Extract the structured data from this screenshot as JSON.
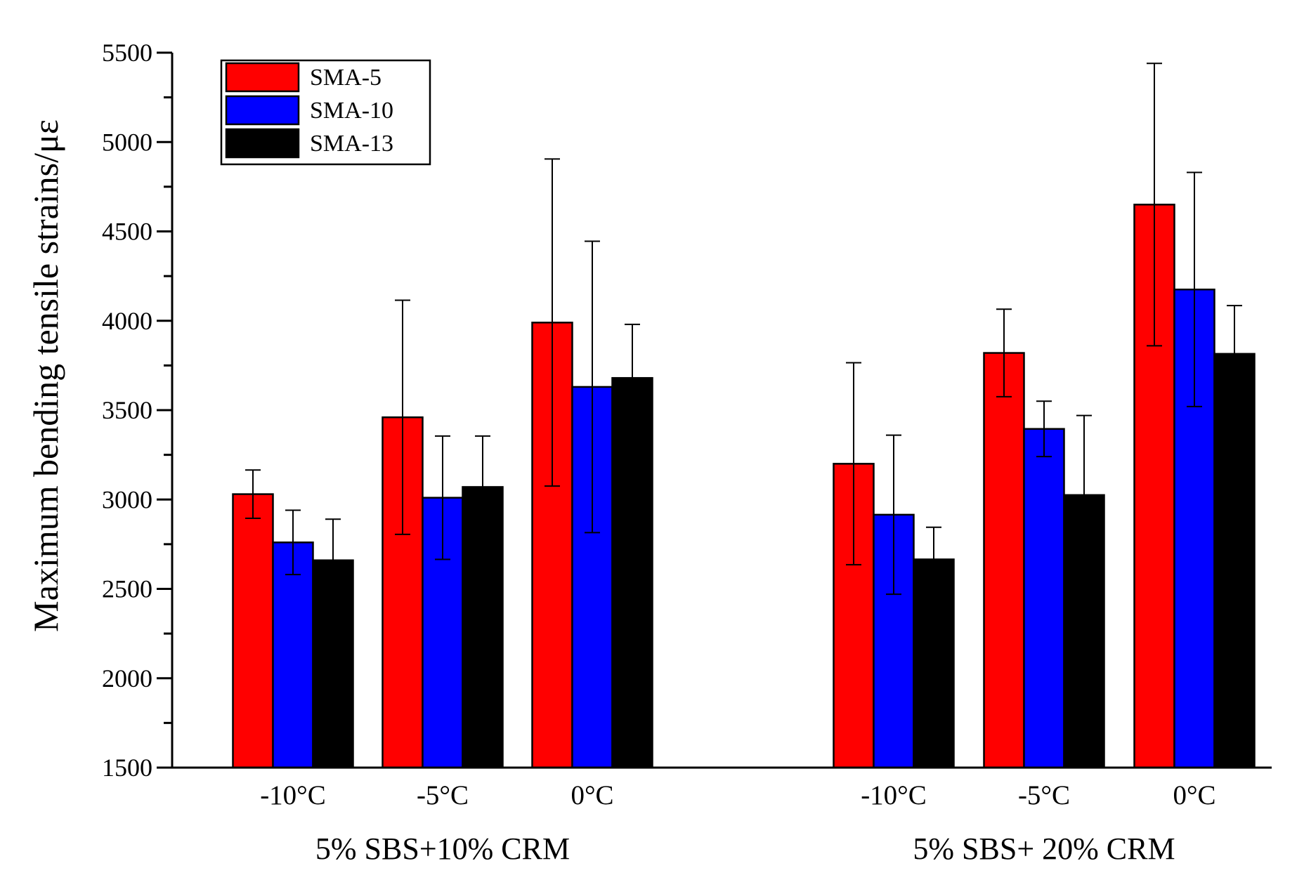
{
  "chart_data": {
    "type": "bar",
    "title": "",
    "ylabel": "Maximum bending tensile strains/με",
    "xlabel": "",
    "ylim": [
      1500,
      5500
    ],
    "yticks": [
      1500,
      2000,
      2500,
      3000,
      3500,
      4000,
      4500,
      5000,
      5500
    ],
    "grid": false,
    "legend_position": "top-left",
    "groups": [
      {
        "label": "5% SBS+10% CRM",
        "categories": [
          "-10°C",
          "-5°C",
          "0°C"
        ]
      },
      {
        "label": "5% SBS+ 20% CRM",
        "categories": [
          "-10°C",
          "-5°C",
          "0°C"
        ]
      }
    ],
    "series": [
      {
        "name": "SMA-5",
        "color": "#ff0000",
        "values": [
          3030,
          3460,
          3990,
          3200,
          3820,
          4650
        ],
        "errors": [
          135,
          655,
          915,
          565,
          245,
          790
        ]
      },
      {
        "name": "SMA-10",
        "color": "#0000ff",
        "values": [
          2760,
          3010,
          3630,
          2915,
          3395,
          4175
        ],
        "errors": [
          180,
          345,
          815,
          445,
          155,
          655
        ]
      },
      {
        "name": "SMA-13",
        "color": "#000000",
        "values": [
          2660,
          3070,
          3680,
          2665,
          3025,
          3815
        ],
        "errors": [
          230,
          285,
          300,
          180,
          445,
          270
        ]
      }
    ]
  }
}
